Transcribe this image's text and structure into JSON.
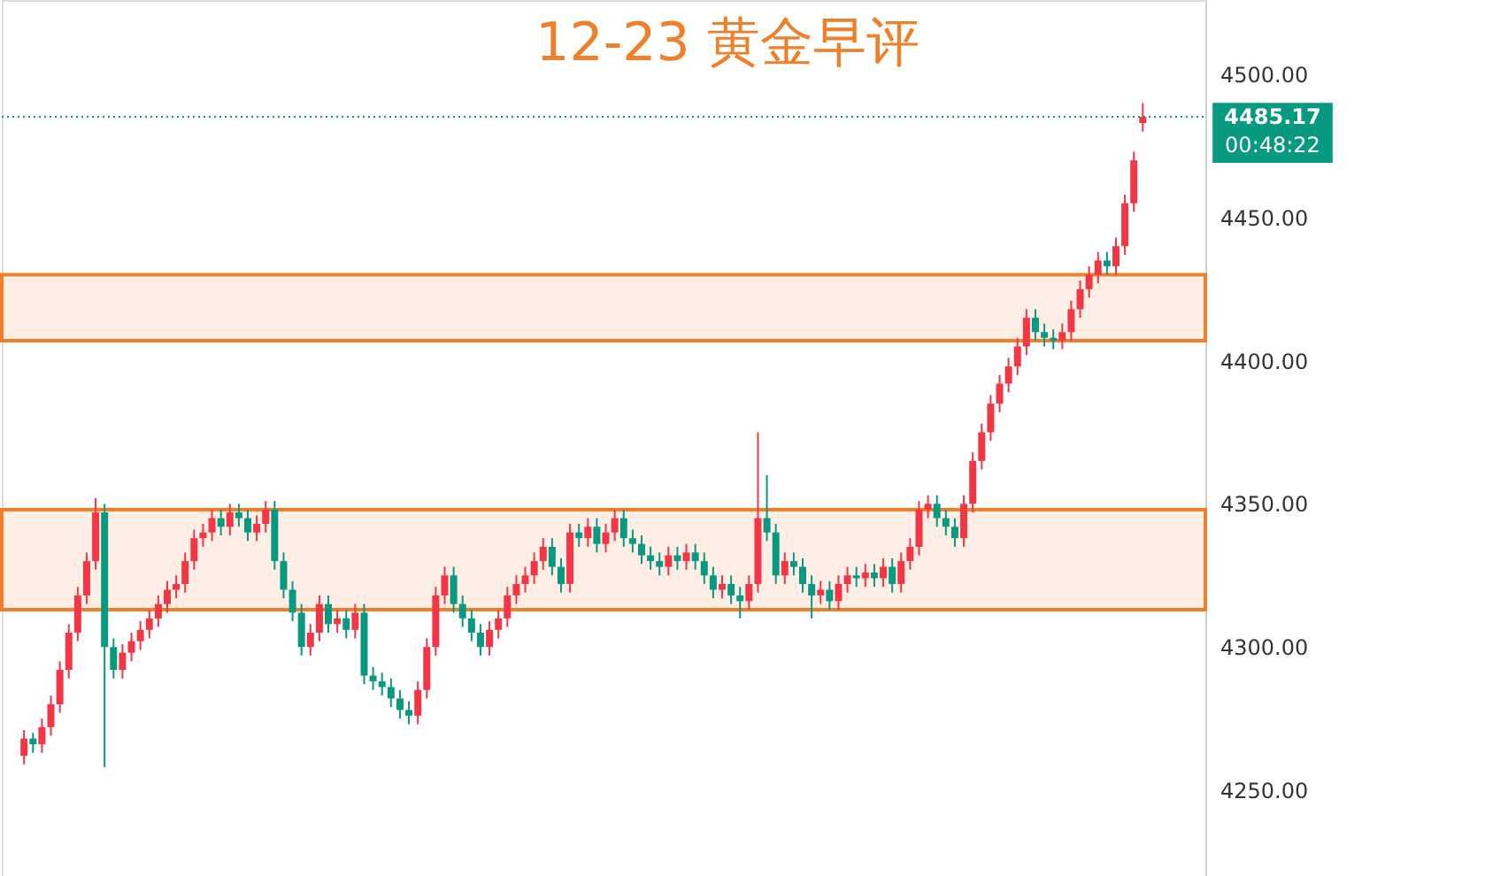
{
  "chart_data": {
    "type": "candlestick",
    "title": "12-23 黄金早评",
    "categories": [
      null,
      null,
      null,
      null,
      null,
      null,
      null,
      null,
      null,
      null,
      null,
      null,
      null,
      null,
      null,
      null,
      null,
      null,
      null,
      null,
      null,
      null,
      null,
      null,
      null,
      null,
      null,
      null,
      null,
      null,
      null,
      null,
      null,
      null,
      null,
      null,
      null,
      null,
      null,
      null,
      null,
      null,
      null,
      null,
      null,
      null,
      null,
      null,
      null,
      null,
      null,
      null,
      null,
      null,
      null,
      null,
      null,
      null,
      null,
      null,
      null,
      null,
      null,
      null,
      null,
      null,
      null,
      null,
      null,
      null,
      null,
      null,
      null,
      null,
      null,
      null,
      null,
      null,
      null,
      null,
      null,
      null,
      null,
      null,
      null,
      null,
      null,
      null,
      null,
      null,
      null,
      null,
      null,
      null,
      null,
      null,
      null,
      null,
      null,
      null,
      null,
      null,
      null,
      null,
      null,
      null,
      null,
      null,
      null,
      null,
      null,
      null,
      null,
      null,
      null,
      null,
      null,
      null,
      null,
      null,
      null,
      null,
      null,
      null,
      null,
      null
    ],
    "ohlc": [
      [
        4262,
        4271,
        4259,
        4268
      ],
      [
        4268,
        4270,
        4263,
        4266
      ],
      [
        4266,
        4275,
        4263,
        4272
      ],
      [
        4272,
        4283,
        4269,
        4280
      ],
      [
        4280,
        4295,
        4277,
        4292
      ],
      [
        4292,
        4308,
        4289,
        4305
      ],
      [
        4305,
        4321,
        4302,
        4318
      ],
      [
        4318,
        4333,
        4315,
        4330
      ],
      [
        4330,
        4352,
        4327,
        4347
      ],
      [
        4347,
        4350,
        4258,
        4300
      ],
      [
        4300,
        4303,
        4289,
        4292
      ],
      [
        4292,
        4301,
        4289,
        4298
      ],
      [
        4298,
        4305,
        4295,
        4302
      ],
      [
        4302,
        4309,
        4299,
        4306
      ],
      [
        4306,
        4313,
        4303,
        4310
      ],
      [
        4310,
        4318,
        4307,
        4315
      ],
      [
        4315,
        4323,
        4312,
        4320
      ],
      [
        4320,
        4325,
        4317,
        4322
      ],
      [
        4322,
        4333,
        4319,
        4330
      ],
      [
        4330,
        4341,
        4327,
        4338
      ],
      [
        4338,
        4343,
        4335,
        4340
      ],
      [
        4340,
        4348,
        4337,
        4345
      ],
      [
        4345,
        4348,
        4339,
        4342
      ],
      [
        4342,
        4350,
        4339,
        4347
      ],
      [
        4347,
        4350,
        4342,
        4345
      ],
      [
        4345,
        4348,
        4337,
        4340
      ],
      [
        4340,
        4346,
        4337,
        4343
      ],
      [
        4343,
        4351,
        4340,
        4348
      ],
      [
        4348,
        4351,
        4327,
        4330
      ],
      [
        4330,
        4333,
        4317,
        4320
      ],
      [
        4320,
        4323,
        4309,
        4312
      ],
      [
        4312,
        4315,
        4297,
        4300
      ],
      [
        4300,
        4308,
        4297,
        4305
      ],
      [
        4305,
        4318,
        4302,
        4315
      ],
      [
        4315,
        4318,
        4305,
        4308
      ],
      [
        4308,
        4313,
        4305,
        4310
      ],
      [
        4310,
        4313,
        4303,
        4306
      ],
      [
        4306,
        4315,
        4303,
        4312
      ],
      [
        4312,
        4315,
        4287,
        4290
      ],
      [
        4290,
        4293,
        4285,
        4288
      ],
      [
        4288,
        4291,
        4283,
        4286
      ],
      [
        4286,
        4289,
        4279,
        4282
      ],
      [
        4282,
        4285,
        4275,
        4278
      ],
      [
        4278,
        4281,
        4273,
        4276
      ],
      [
        4276,
        4288,
        4273,
        4285
      ],
      [
        4285,
        4303,
        4282,
        4300
      ],
      [
        4300,
        4321,
        4297,
        4318
      ],
      [
        4318,
        4328,
        4315,
        4325
      ],
      [
        4325,
        4328,
        4312,
        4315
      ],
      [
        4315,
        4318,
        4307,
        4310
      ],
      [
        4310,
        4313,
        4302,
        4305
      ],
      [
        4305,
        4308,
        4297,
        4300
      ],
      [
        4300,
        4309,
        4297,
        4306
      ],
      [
        4306,
        4313,
        4303,
        4310
      ],
      [
        4310,
        4321,
        4307,
        4318
      ],
      [
        4318,
        4325,
        4315,
        4322
      ],
      [
        4322,
        4328,
        4319,
        4325
      ],
      [
        4325,
        4333,
        4322,
        4330
      ],
      [
        4330,
        4338,
        4327,
        4335
      ],
      [
        4335,
        4338,
        4325,
        4328
      ],
      [
        4328,
        4331,
        4319,
        4322
      ],
      [
        4322,
        4343,
        4319,
        4340
      ],
      [
        4340,
        4343,
        4335,
        4338
      ],
      [
        4338,
        4345,
        4335,
        4342
      ],
      [
        4342,
        4345,
        4333,
        4336
      ],
      [
        4336,
        4343,
        4333,
        4340
      ],
      [
        4340,
        4348,
        4337,
        4345
      ],
      [
        4345,
        4348,
        4335,
        4338
      ],
      [
        4338,
        4341,
        4333,
        4336
      ],
      [
        4336,
        4339,
        4329,
        4332
      ],
      [
        4332,
        4335,
        4327,
        4330
      ],
      [
        4330,
        4333,
        4325,
        4328
      ],
      [
        4328,
        4335,
        4325,
        4332
      ],
      [
        4332,
        4335,
        4327,
        4330
      ],
      [
        4330,
        4336,
        4327,
        4333
      ],
      [
        4333,
        4336,
        4327,
        4330
      ],
      [
        4330,
        4333,
        4322,
        4325
      ],
      [
        4325,
        4328,
        4317,
        4320
      ],
      [
        4320,
        4325,
        4317,
        4322
      ],
      [
        4322,
        4325,
        4315,
        4318
      ],
      [
        4318,
        4321,
        4310,
        4316
      ],
      [
        4316,
        4325,
        4313,
        4322
      ],
      [
        4322,
        4375,
        4319,
        4345
      ],
      [
        4345,
        4360,
        4337,
        4340
      ],
      [
        4340,
        4343,
        4322,
        4325
      ],
      [
        4325,
        4333,
        4322,
        4330
      ],
      [
        4330,
        4333,
        4325,
        4328
      ],
      [
        4328,
        4331,
        4319,
        4322
      ],
      [
        4322,
        4325,
        4310,
        4318
      ],
      [
        4318,
        4323,
        4315,
        4320
      ],
      [
        4320,
        4323,
        4313,
        4316
      ],
      [
        4316,
        4325,
        4313,
        4322
      ],
      [
        4322,
        4328,
        4319,
        4325
      ],
      [
        4325,
        4328,
        4321,
        4324
      ],
      [
        4324,
        4329,
        4321,
        4326
      ],
      [
        4326,
        4329,
        4321,
        4324
      ],
      [
        4324,
        4331,
        4321,
        4328
      ],
      [
        4328,
        4331,
        4319,
        4322
      ],
      [
        4322,
        4333,
        4319,
        4330
      ],
      [
        4330,
        4338,
        4327,
        4335
      ],
      [
        4335,
        4351,
        4332,
        4348
      ],
      [
        4348,
        4353,
        4345,
        4350
      ],
      [
        4350,
        4353,
        4342,
        4345
      ],
      [
        4345,
        4348,
        4339,
        4342
      ],
      [
        4342,
        4345,
        4335,
        4338
      ],
      [
        4338,
        4353,
        4335,
        4350
      ],
      [
        4350,
        4368,
        4347,
        4365
      ],
      [
        4365,
        4378,
        4362,
        4375
      ],
      [
        4375,
        4388,
        4372,
        4385
      ],
      [
        4385,
        4395,
        4382,
        4392
      ],
      [
        4392,
        4401,
        4389,
        4398
      ],
      [
        4398,
        4408,
        4395,
        4405
      ],
      [
        4405,
        4418,
        4402,
        4415
      ],
      [
        4415,
        4418,
        4407,
        4410
      ],
      [
        4410,
        4413,
        4405,
        4408
      ],
      [
        4408,
        4411,
        4404,
        4407
      ],
      [
        4407,
        4413,
        4404,
        4410
      ],
      [
        4410,
        4421,
        4407,
        4418
      ],
      [
        4418,
        4428,
        4415,
        4425
      ],
      [
        4425,
        4433,
        4422,
        4430
      ],
      [
        4430,
        4438,
        4427,
        4435
      ],
      [
        4435,
        4438,
        4430,
        4433
      ],
      [
        4433,
        4443,
        4430,
        4440
      ],
      [
        4440,
        4458,
        4437,
        4455
      ],
      [
        4455,
        4473,
        4452,
        4470
      ],
      [
        4483,
        4490,
        4480,
        4485.17
      ]
    ],
    "colors": [
      "#f23645",
      "#089981",
      "#f23645",
      "#f23645",
      "#f23645",
      "#f23645",
      "#f23645",
      "#f23645",
      "#f23645",
      "#089981",
      "#089981",
      "#f23645",
      "#f23645",
      "#f23645",
      "#f23645",
      "#f23645",
      "#f23645",
      "#f23645",
      "#f23645",
      "#f23645",
      "#f23645",
      "#f23645",
      "#089981",
      "#f23645",
      "#089981",
      "#089981",
      "#f23645",
      "#f23645",
      "#089981",
      "#089981",
      "#089981",
      "#089981",
      "#f23645",
      "#f23645",
      "#089981",
      "#f23645",
      "#089981",
      "#f23645",
      "#089981",
      "#089981",
      "#089981",
      "#089981",
      "#089981",
      "#089981",
      "#f23645",
      "#f23645",
      "#f23645",
      "#f23645",
      "#089981",
      "#089981",
      "#089981",
      "#089981",
      "#f23645",
      "#f23645",
      "#f23645",
      "#f23645",
      "#f23645",
      "#f23645",
      "#f23645",
      "#089981",
      "#089981",
      "#f23645",
      "#089981",
      "#f23645",
      "#089981",
      "#f23645",
      "#f23645",
      "#089981",
      "#089981",
      "#089981",
      "#089981",
      "#089981",
      "#f23645",
      "#089981",
      "#f23645",
      "#089981",
      "#089981",
      "#089981",
      "#f23645",
      "#089981",
      "#089981",
      "#f23645",
      "#f23645",
      "#089981",
      "#089981",
      "#f23645",
      "#089981",
      "#089981",
      "#089981",
      "#f23645",
      "#089981",
      "#f23645",
      "#f23645",
      "#089981",
      "#f23645",
      "#089981",
      "#f23645",
      "#089981",
      "#f23645",
      "#f23645",
      "#f23645",
      "#f23645",
      "#089981",
      "#089981",
      "#089981",
      "#f23645",
      "#f23645",
      "#f23645",
      "#f23645",
      "#f23645",
      "#f23645",
      "#f23645",
      "#f23645",
      "#089981",
      "#089981",
      "#089981",
      "#f23645",
      "#f23645",
      "#f23645",
      "#f23645",
      "#f23645",
      "#089981",
      "#f23645",
      "#f23645",
      "#f23645",
      "#f23645"
    ],
    "ylim": [
      4220,
      4526
    ],
    "yticks": [
      {
        "value": 4250,
        "label": "4250.00"
      },
      {
        "value": 4300,
        "label": "4300.00"
      },
      {
        "value": 4350,
        "label": "4350.00"
      },
      {
        "value": 4400,
        "label": "4400.00"
      },
      {
        "value": 4450,
        "label": "4450.00"
      },
      {
        "value": 4500,
        "label": "4500.00"
      }
    ],
    "ref_lines": [
      {
        "axis": "y",
        "value": 4485.17,
        "label": "4485.17",
        "color": "#089981",
        "line_style": "dotted"
      }
    ],
    "bands": [
      {
        "axis": "y",
        "from": 4313,
        "to": 4348,
        "color": "#f07f2a"
      },
      {
        "axis": "y",
        "from": 4407,
        "to": 4430,
        "color": "#f07f2a"
      }
    ],
    "annotations": [
      "00:48:22"
    ]
  }
}
